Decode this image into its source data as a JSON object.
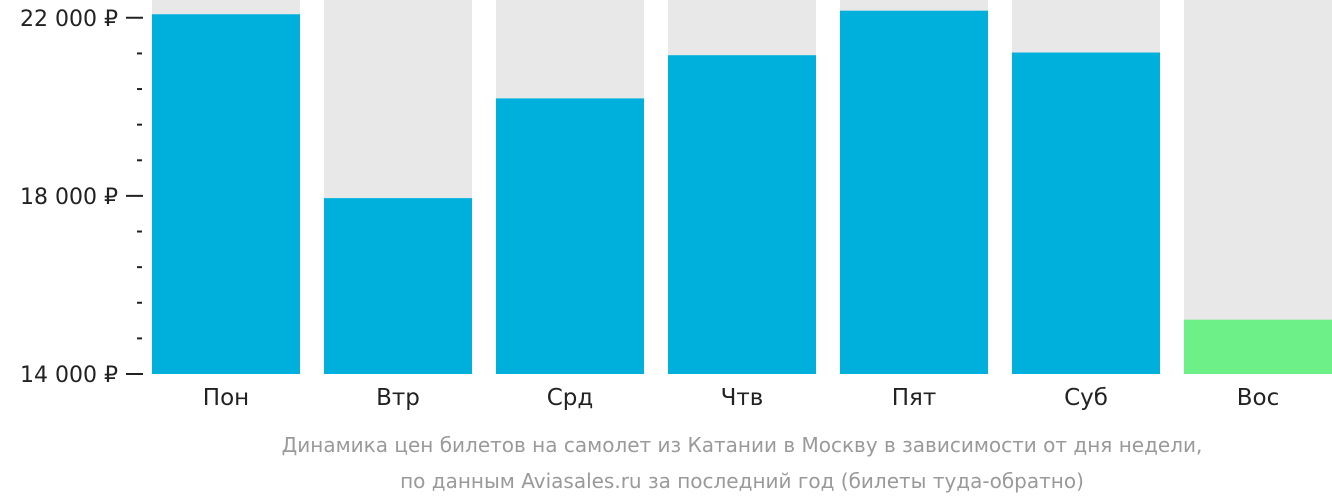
{
  "chart_data": {
    "type": "bar",
    "categories": [
      "Пон",
      "Втр",
      "Срд",
      "Чтв",
      "Пят",
      "Суб",
      "Вос"
    ],
    "values": [
      22080,
      17950,
      20190,
      21160,
      22160,
      21220,
      15220
    ],
    "ylim": [
      14000,
      22400
    ],
    "yticks": [
      {
        "value": 14000,
        "label": "14 000 ₽"
      },
      {
        "value": 18000,
        "label": "18 000 ₽"
      },
      {
        "value": 22000,
        "label": "22 000 ₽"
      }
    ],
    "minor_tick_step": 800,
    "highlight_index": 6,
    "colors": {
      "bar": "#00b0dc",
      "highlight": "#6ef088",
      "background_column": "#e8e8e8",
      "axis": "#222222"
    },
    "caption": [
      "Динамика цен билетов на самолет из Катании в Москву в зависимости от дня недели,",
      "по данным Aviasales.ru за последний год (билеты туда-обратно)"
    ]
  }
}
